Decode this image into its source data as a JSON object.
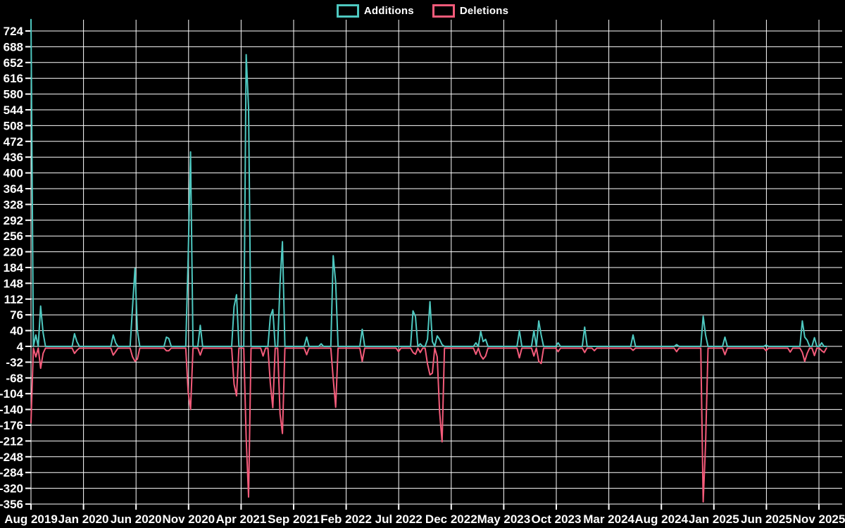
{
  "legend": {
    "items": [
      {
        "label": "Additions",
        "color": "#4ec8c0"
      },
      {
        "label": "Deletions",
        "color": "#f45b7a"
      }
    ]
  },
  "colors": {
    "background": "#000000",
    "grid": "#ffffff",
    "text": "#ffffff",
    "additions": "#4ec8c0",
    "deletions": "#f45b7a"
  },
  "chart_data": {
    "type": "line",
    "title": "",
    "xlabel": "",
    "ylabel": "",
    "grid": true,
    "legend_position": "top-center",
    "x_axis": {
      "labels": [
        "Aug 2019",
        "Jan 2020",
        "Jun 2020",
        "Nov 2020",
        "Apr 2021",
        "Sep 2021",
        "Feb 2022",
        "Jul 2022",
        "Dec 2022",
        "May 2023",
        "Oct 2023",
        "Mar 2024",
        "Aug 2024",
        "Jan 2025",
        "Jun 2025",
        "Nov 2025"
      ],
      "label_month_positions": [
        0,
        5,
        10,
        15,
        20,
        25,
        30,
        35,
        40,
        45,
        50,
        55,
        60,
        65,
        70,
        75
      ],
      "weeks_total": 330
    },
    "y_axis": {
      "min": -356,
      "max": 724,
      "tick_step": 36,
      "ticks": [
        724,
        688,
        652,
        616,
        580,
        544,
        508,
        472,
        436,
        400,
        364,
        328,
        292,
        256,
        220,
        184,
        148,
        112,
        76,
        40,
        4,
        -32,
        -68,
        -104,
        -140,
        -176,
        -212,
        -248,
        -284,
        -320,
        -356
      ]
    },
    "baseline": {
      "additions": 4,
      "deletions": 0
    },
    "series": [
      {
        "name": "Additions",
        "color": "#4ec8c0",
        "points_sparse": [
          [
            0,
            750
          ],
          [
            2,
            30
          ],
          [
            4,
            96
          ],
          [
            5,
            35
          ],
          [
            18,
            33
          ],
          [
            19,
            15
          ],
          [
            34,
            30
          ],
          [
            35,
            12
          ],
          [
            42,
            93
          ],
          [
            43,
            182
          ],
          [
            44,
            40
          ],
          [
            56,
            25
          ],
          [
            57,
            22
          ],
          [
            65,
            206
          ],
          [
            66,
            448
          ],
          [
            70,
            52
          ],
          [
            84,
            95
          ],
          [
            85,
            122
          ],
          [
            89,
            670
          ],
          [
            90,
            547
          ],
          [
            99,
            72
          ],
          [
            100,
            88
          ],
          [
            103,
            149
          ],
          [
            104,
            243
          ],
          [
            114,
            25
          ],
          [
            120,
            10
          ],
          [
            125,
            211
          ],
          [
            126,
            150
          ],
          [
            137,
            43
          ],
          [
            158,
            85
          ],
          [
            159,
            72
          ],
          [
            161,
            10
          ],
          [
            164,
            20
          ],
          [
            165,
            106
          ],
          [
            166,
            15
          ],
          [
            168,
            28
          ],
          [
            169,
            20
          ],
          [
            170,
            8
          ],
          [
            184,
            12
          ],
          [
            186,
            38
          ],
          [
            187,
            15
          ],
          [
            188,
            20
          ],
          [
            202,
            40
          ],
          [
            208,
            40
          ],
          [
            210,
            62
          ],
          [
            211,
            30
          ],
          [
            218,
            12
          ],
          [
            229,
            48
          ],
          [
            249,
            30
          ],
          [
            267,
            8
          ],
          [
            278,
            73
          ],
          [
            279,
            30
          ],
          [
            287,
            25
          ],
          [
            304,
            7
          ],
          [
            319,
            62
          ],
          [
            320,
            25
          ],
          [
            321,
            18
          ],
          [
            324,
            24
          ],
          [
            327,
            12
          ]
        ]
      },
      {
        "name": "Deletions",
        "color": "#f45b7a",
        "points_sparse": [
          [
            0,
            -170
          ],
          [
            2,
            -20
          ],
          [
            4,
            -46
          ],
          [
            5,
            -12
          ],
          [
            18,
            -12
          ],
          [
            19,
            -5
          ],
          [
            34,
            -16
          ],
          [
            35,
            -8
          ],
          [
            42,
            -20
          ],
          [
            43,
            -30
          ],
          [
            44,
            -25
          ],
          [
            56,
            -6
          ],
          [
            57,
            -6
          ],
          [
            65,
            -100
          ],
          [
            66,
            -140
          ],
          [
            70,
            -16
          ],
          [
            84,
            -82
          ],
          [
            85,
            -109
          ],
          [
            89,
            -205
          ],
          [
            90,
            -340
          ],
          [
            96,
            -18
          ],
          [
            99,
            -80
          ],
          [
            100,
            -136
          ],
          [
            103,
            -150
          ],
          [
            104,
            -195
          ],
          [
            114,
            -15
          ],
          [
            125,
            -70
          ],
          [
            126,
            -135
          ],
          [
            137,
            -30
          ],
          [
            152,
            -8
          ],
          [
            158,
            -10
          ],
          [
            159,
            -14
          ],
          [
            161,
            -10
          ],
          [
            164,
            -36
          ],
          [
            165,
            -61
          ],
          [
            166,
            -57
          ],
          [
            168,
            -20
          ],
          [
            169,
            -146
          ],
          [
            170,
            -214
          ],
          [
            184,
            -14
          ],
          [
            186,
            -17
          ],
          [
            187,
            -25
          ],
          [
            188,
            -18
          ],
          [
            202,
            -22
          ],
          [
            208,
            -18
          ],
          [
            210,
            -30
          ],
          [
            211,
            -35
          ],
          [
            218,
            -8
          ],
          [
            229,
            -10
          ],
          [
            233,
            -6
          ],
          [
            249,
            -5
          ],
          [
            267,
            -8
          ],
          [
            278,
            -351
          ],
          [
            279,
            -219
          ],
          [
            287,
            -15
          ],
          [
            304,
            -6
          ],
          [
            314,
            -9
          ],
          [
            319,
            -10
          ],
          [
            320,
            -30
          ],
          [
            321,
            -12
          ],
          [
            324,
            -17
          ],
          [
            327,
            -6
          ],
          [
            328,
            -10
          ]
        ]
      }
    ]
  }
}
